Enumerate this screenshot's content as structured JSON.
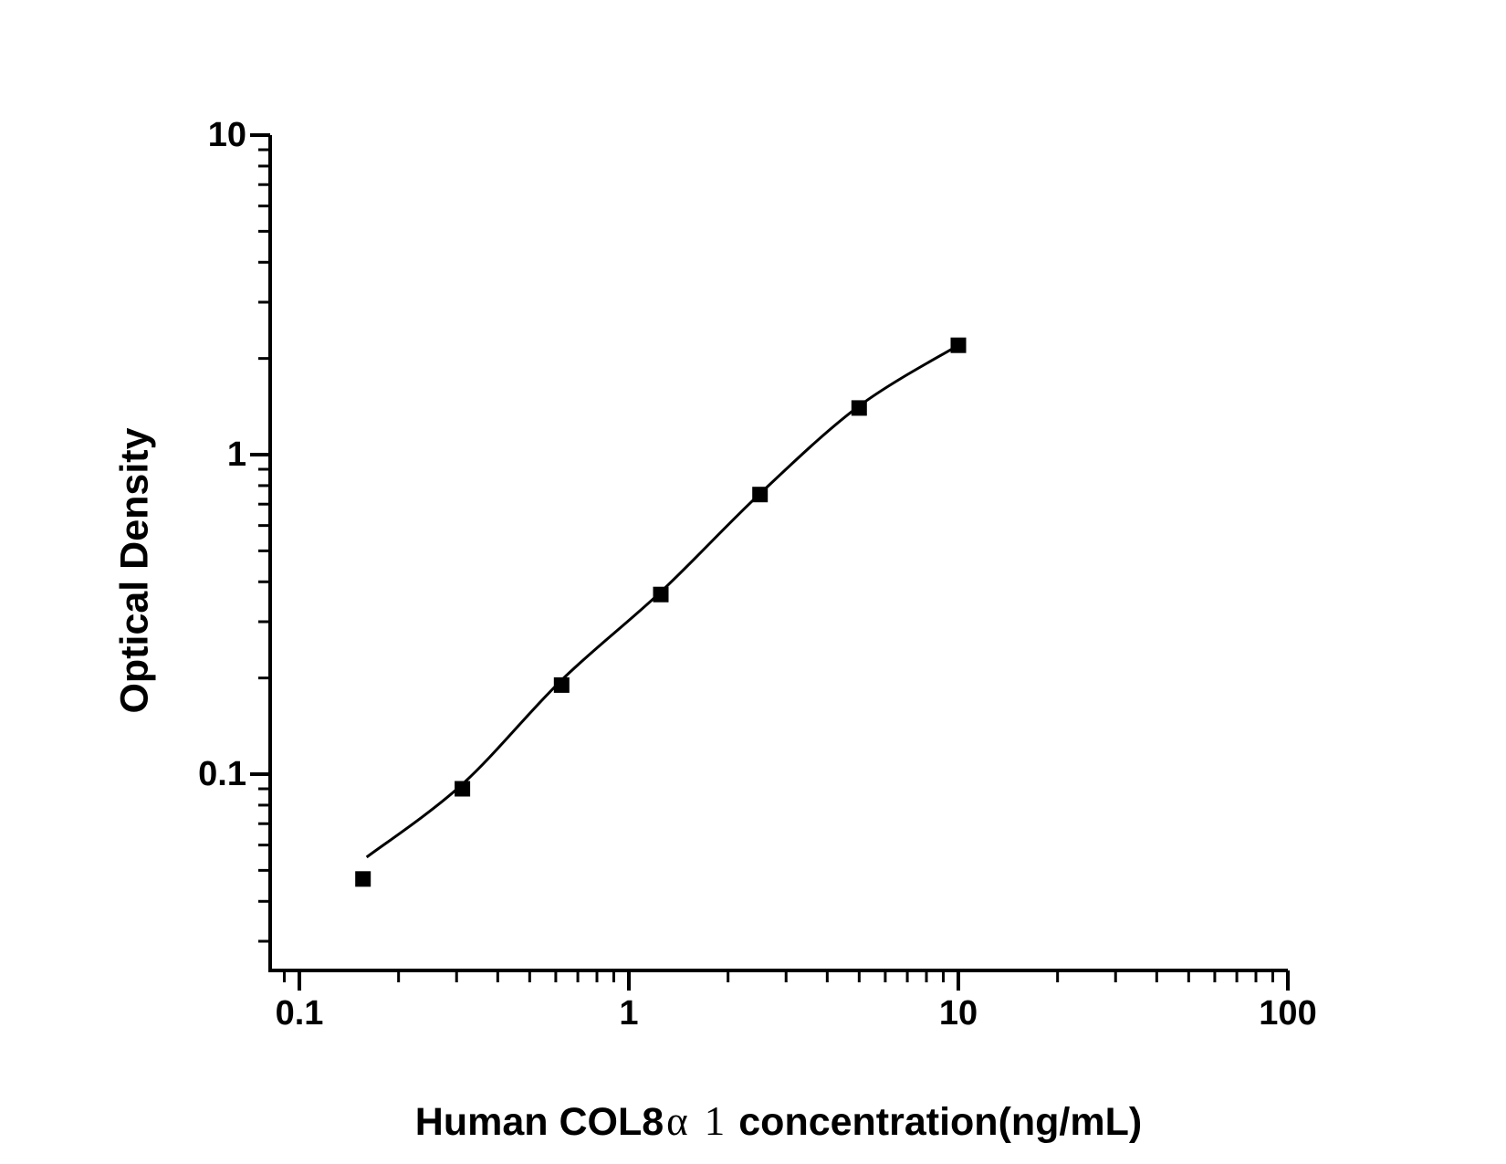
{
  "figure": {
    "background_color": "#ffffff",
    "ink_color": "#000000"
  },
  "chart_data": {
    "type": "scatter",
    "subtype": "elisa-standard-curve-with-fitted-line",
    "title": "",
    "xlabel": "Human COL8α 1 concentration(ng/mL)",
    "ylabel": "Optical Density",
    "x_scale": "log",
    "y_scale": "log",
    "xlim": [
      0.082,
      100
    ],
    "ylim": [
      0.024,
      10
    ],
    "grid": false,
    "legend_position": "none",
    "x_ticks": [
      {
        "value": 0.1,
        "label": "0.1"
      },
      {
        "value": 1,
        "label": "1"
      },
      {
        "value": 10,
        "label": "10"
      },
      {
        "value": 100,
        "label": "100"
      }
    ],
    "y_ticks": [
      {
        "value": 0.1,
        "label": "0.1"
      },
      {
        "value": 1,
        "label": "1"
      },
      {
        "value": 10,
        "label": "10"
      }
    ],
    "series": [
      {
        "name": "standard points",
        "marker": "filled-square",
        "color": "#000000",
        "points": [
          [
            0.156,
            0.047
          ],
          [
            0.3125,
            0.09
          ],
          [
            0.625,
            0.19
          ],
          [
            1.25,
            0.365
          ],
          [
            2.5,
            0.75
          ],
          [
            5,
            1.4
          ],
          [
            10,
            2.2
          ]
        ]
      },
      {
        "name": "fitted curve",
        "marker": "none",
        "color": "#000000",
        "points": [
          [
            0.16,
            0.055
          ],
          [
            0.3125,
            0.093
          ],
          [
            0.625,
            0.197
          ],
          [
            1.25,
            0.372
          ],
          [
            2.5,
            0.755
          ],
          [
            5,
            1.42
          ],
          [
            10,
            2.2
          ]
        ]
      }
    ]
  },
  "labels": {
    "xlabel_prefix": "Human COL8",
    "xlabel_alpha": "α",
    "xlabel_number": "1",
    "xlabel_suffix": "concentration(ng/mL)",
    "ylabel": "Optical Density"
  }
}
